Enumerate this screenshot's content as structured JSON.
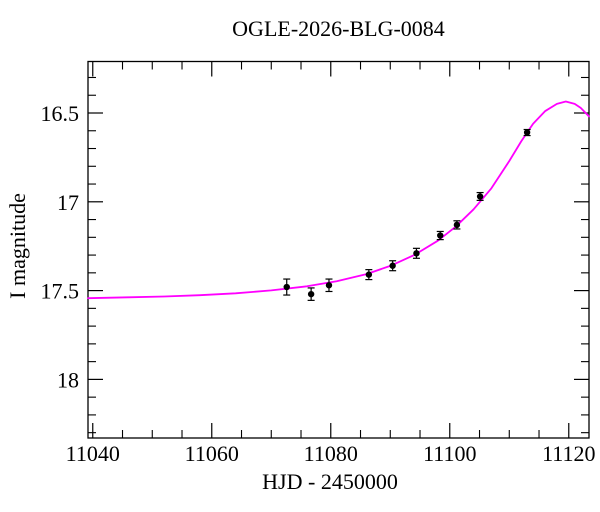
{
  "figure": {
    "title": "OGLE-2026-BLG-0084",
    "x_label": "HJD - 2450000",
    "y_label": "I magnitude",
    "background_color": "#ffffff",
    "frame_color": "#000000"
  },
  "chart_data": {
    "type": "scatter",
    "title": "OGLE-2026-BLG-0084",
    "xlabel": "HJD - 2450000",
    "ylabel": "I magnitude",
    "grid": false,
    "legend": "none",
    "x_axis": {
      "min": 11039.2,
      "max": 11123.4,
      "major_ticks": [
        11040,
        11060,
        11080,
        11100,
        11120
      ],
      "major_tick_labels": [
        "11040",
        "11060",
        "11080",
        "11100",
        "11120"
      ],
      "minor_tick_step": 5
    },
    "y_axis": {
      "min": 16.21,
      "max": 18.33,
      "inverted_magnitude_scale": true,
      "major_ticks": [
        16.5,
        17.0,
        17.5,
        18.0
      ],
      "major_tick_labels": [
        "16.5",
        "17",
        "17.5",
        "18"
      ],
      "minor_tick_step": 0.1
    },
    "series": [
      {
        "name": "microlensing model light curve",
        "type": "line",
        "color": "#ff00ff",
        "points": [
          [
            11039.2,
            17.543
          ],
          [
            11046,
            17.538
          ],
          [
            11052,
            17.533
          ],
          [
            11058,
            17.526
          ],
          [
            11064,
            17.515
          ],
          [
            11070,
            17.499
          ],
          [
            11076,
            17.476
          ],
          [
            11081,
            17.447
          ],
          [
            11086,
            17.407
          ],
          [
            11090,
            17.361
          ],
          [
            11094,
            17.3
          ],
          [
            11098,
            17.219
          ],
          [
            11101,
            17.14
          ],
          [
            11104,
            17.042
          ],
          [
            11107,
            16.924
          ],
          [
            11110,
            16.77
          ],
          [
            11112,
            16.66
          ],
          [
            11114,
            16.56
          ],
          [
            11116,
            16.49
          ],
          [
            11118,
            16.449
          ],
          [
            11119.5,
            16.435
          ],
          [
            11121,
            16.449
          ],
          [
            11122,
            16.471
          ],
          [
            11123.4,
            16.519
          ]
        ]
      },
      {
        "name": "I-band observations",
        "type": "scatter",
        "marker": "filled-circle",
        "color": "#000000",
        "points": [
          {
            "hjd": 11072.6,
            "mag": 17.48,
            "err": 0.045
          },
          {
            "hjd": 11076.7,
            "mag": 17.52,
            "err": 0.035
          },
          {
            "hjd": 11079.7,
            "mag": 17.47,
            "err": 0.035
          },
          {
            "hjd": 11086.4,
            "mag": 17.41,
            "err": 0.028
          },
          {
            "hjd": 11090.4,
            "mag": 17.36,
            "err": 0.028
          },
          {
            "hjd": 11094.4,
            "mag": 17.29,
            "err": 0.028
          },
          {
            "hjd": 11098.4,
            "mag": 17.19,
            "err": 0.023
          },
          {
            "hjd": 11101.2,
            "mag": 17.13,
            "err": 0.023
          },
          {
            "hjd": 11105.1,
            "mag": 16.97,
            "err": 0.022
          },
          {
            "hjd": 11113.0,
            "mag": 16.61,
            "err": 0.017
          }
        ]
      }
    ]
  }
}
